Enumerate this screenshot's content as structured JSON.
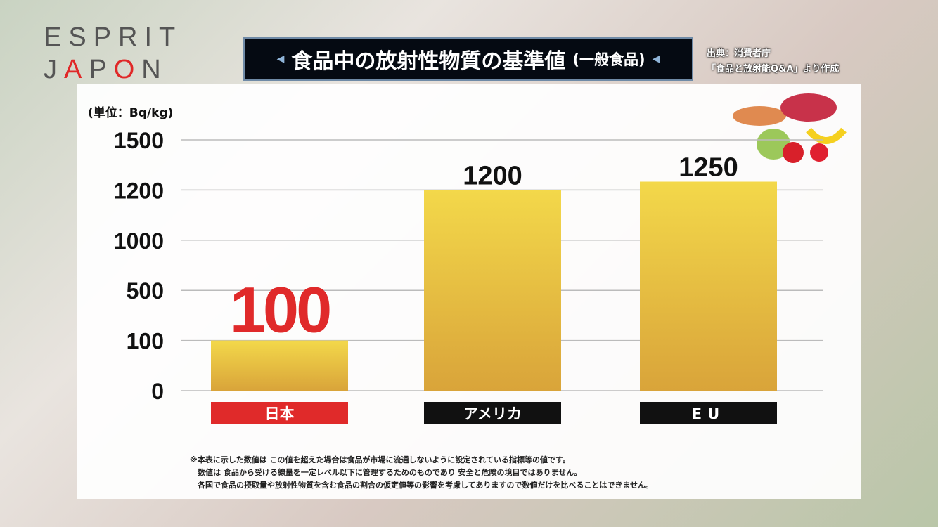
{
  "logo": {
    "line1": "ESPRIT",
    "line2a": "J",
    "line2b": "A",
    "line2c": "P",
    "line2d": "O",
    "line2e": "N"
  },
  "title": {
    "main": "食品中の放射性物質の基準値",
    "sub": "(一般食品)"
  },
  "source": {
    "line1": "出典：消費者庁",
    "line2": "「食品と放射能Q&A」より作成"
  },
  "chart_data": {
    "type": "bar",
    "title": "食品中の放射性物質の基準値 (一般食品)",
    "ylabel": "(単位：Bq/kg)",
    "categories": [
      "日本",
      "アメリカ",
      "EU"
    ],
    "values": [
      100,
      1200,
      1250
    ],
    "value_labels": [
      "100",
      "1200",
      "1250"
    ],
    "yticks": [
      0,
      100,
      500,
      1000,
      1200,
      1500
    ],
    "ytick_labels": [
      "0",
      "100",
      "500",
      "1000",
      "1200",
      "1500"
    ],
    "ylim": [
      0,
      1500
    ],
    "axis_scale": "non-linear (equally spaced ticks)",
    "grid": true,
    "bar_color": "#e8c040",
    "category_colors": [
      "#e02a2a",
      "#111111",
      "#111111"
    ],
    "highlight_color": "#e02a2a"
  },
  "footnote": [
    "※本表に示した数値は この値を超えた場合は食品が市場に流通しないように設定されている指標等の値です。",
    "　数値は 食品から受ける線量を一定レベル以下に管理するためのものであり 安全と危険の境目ではありません。",
    "　各国で食品の摂取量や放射性物質を含む食品の割合の仮定値等の影響を考慮してありますので数値だけを比べることはできません。"
  ]
}
